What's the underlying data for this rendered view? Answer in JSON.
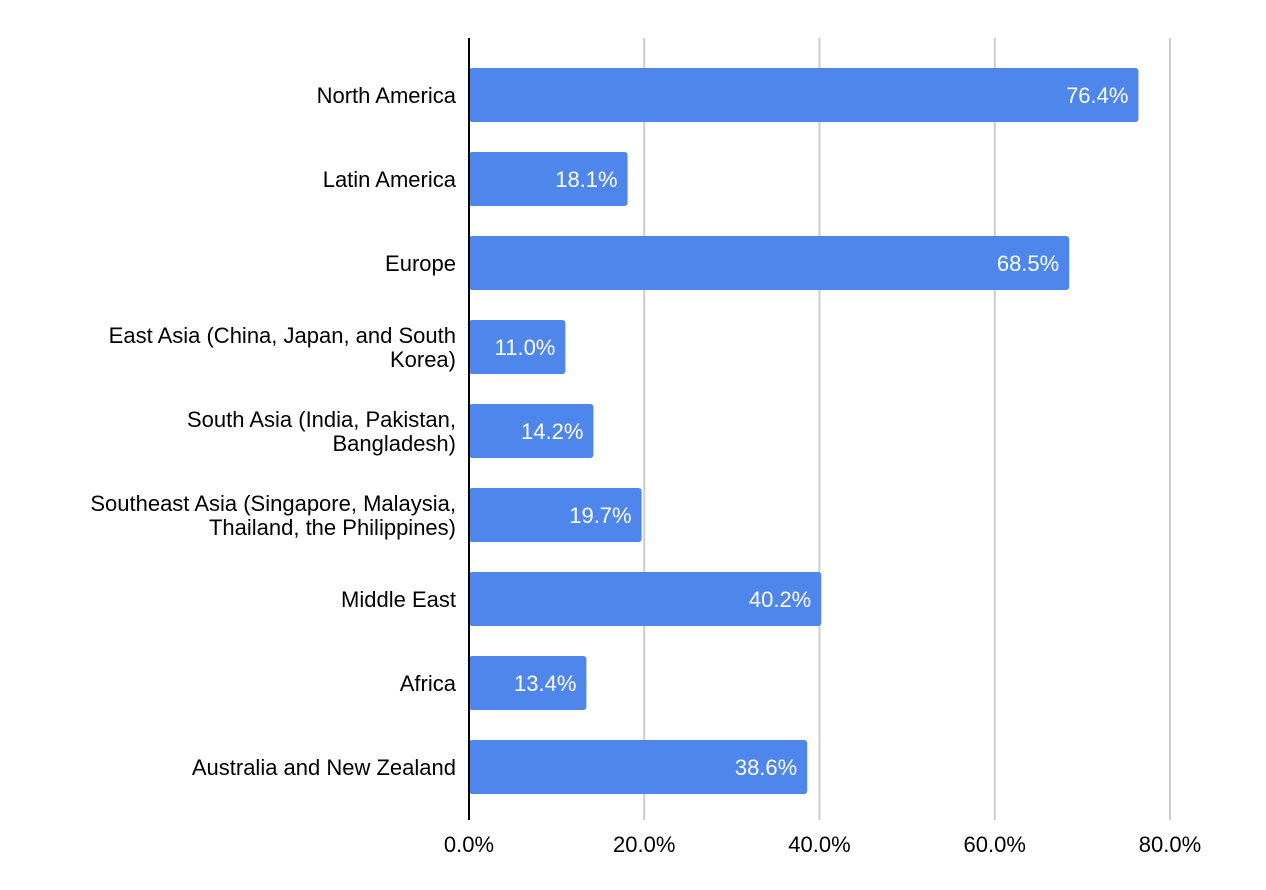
{
  "chart_data": {
    "type": "bar",
    "orientation": "horizontal",
    "categories": [
      [
        "North America"
      ],
      [
        "Latin America"
      ],
      [
        "Europe"
      ],
      [
        "East Asia (China, Japan, and South",
        "Korea)"
      ],
      [
        "South Asia (India, Pakistan,",
        "Bangladesh)"
      ],
      [
        "Southeast Asia (Singapore, Malaysia,",
        "Thailand, the Philippines)"
      ],
      [
        "Middle East"
      ],
      [
        "Africa"
      ],
      [
        "Australia and New Zealand"
      ]
    ],
    "values": [
      76.4,
      18.1,
      68.5,
      11.0,
      14.2,
      19.7,
      40.2,
      13.4,
      38.6
    ],
    "data_labels": [
      "76.4%",
      "18.1%",
      "68.5%",
      "11.0%",
      "14.2%",
      "19.7%",
      "40.2%",
      "13.4%",
      "38.6%"
    ],
    "x_ticks": [
      0,
      20,
      40,
      60,
      80
    ],
    "x_tick_labels": [
      "0.0%",
      "20.0%",
      "40.0%",
      "60.0%",
      "80.0%"
    ],
    "xlim": [
      0,
      80
    ],
    "grid": true,
    "bar_color": "#4f86ec",
    "title": "",
    "xlabel": "",
    "ylabel": ""
  }
}
